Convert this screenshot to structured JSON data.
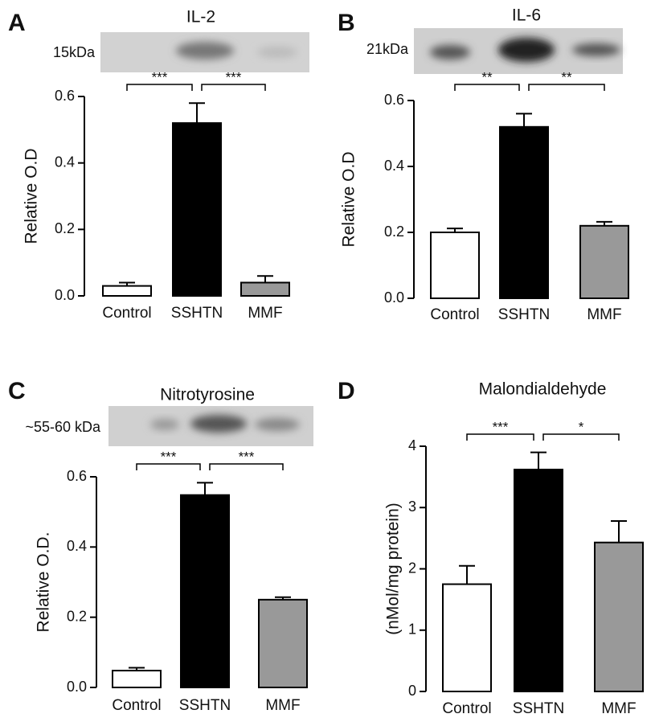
{
  "chart_data": [
    {
      "type": "bar",
      "panel": "A",
      "title": "IL-2",
      "band_label": "15kDa",
      "ylabel": "Relative O.D",
      "categories": [
        "Control",
        "SSHTN",
        "MMF"
      ],
      "values": [
        0.03,
        0.52,
        0.04
      ],
      "errors": [
        0.01,
        0.06,
        0.02
      ],
      "colors": [
        "#ffffff",
        "#000000",
        "#999999"
      ],
      "ylim": [
        0,
        0.6
      ],
      "yticks": [
        {
          "value": 0,
          "label": "0.0"
        },
        0.2,
        0.4,
        0.6
      ],
      "significance": [
        "***",
        "***"
      ]
    },
    {
      "type": "bar",
      "panel": "B",
      "title": "IL-6",
      "band_label": "21kDa",
      "ylabel": "Relative O.D",
      "categories": [
        "Control",
        "SSHTN",
        "MMF"
      ],
      "values": [
        0.2,
        0.52,
        0.22
      ],
      "errors": [
        0.012,
        0.04,
        0.012
      ],
      "colors": [
        "#ffffff",
        "#000000",
        "#999999"
      ],
      "ylim": [
        0,
        0.6
      ],
      "yticks": [
        {
          "value": 0,
          "label": "0.0"
        },
        0.2,
        0.4,
        0.6
      ],
      "significance": [
        "**",
        "**"
      ]
    },
    {
      "type": "bar",
      "panel": "C",
      "title": "Nitrotyrosine",
      "band_label": "~55-60 kDa",
      "ylabel": "Relative O.D.",
      "categories": [
        "Control",
        "SSHTN",
        "MMF"
      ],
      "values": [
        0.048,
        0.548,
        0.25
      ],
      "errors": [
        0.008,
        0.035,
        0.007
      ],
      "colors": [
        "#ffffff",
        "#000000",
        "#999999"
      ],
      "ylim": [
        0,
        0.6
      ],
      "yticks": [
        {
          "value": 0,
          "label": "0.0"
        },
        0.2,
        0.4,
        0.6
      ],
      "significance": [
        "***",
        "***"
      ]
    },
    {
      "type": "bar",
      "panel": "D",
      "title": "Malondialdehyde",
      "ylabel": "(nMol/mg protein)",
      "categories": [
        "Control",
        "SSHTN",
        "MMF"
      ],
      "values": [
        1.75,
        3.62,
        2.43
      ],
      "errors": [
        0.3,
        0.28,
        0.35
      ],
      "colors": [
        "#ffffff",
        "#000000",
        "#999999"
      ],
      "ylim": [
        0,
        4
      ],
      "yticks": [
        0,
        1,
        2,
        3,
        4
      ],
      "significance": [
        "***",
        "*"
      ]
    }
  ]
}
